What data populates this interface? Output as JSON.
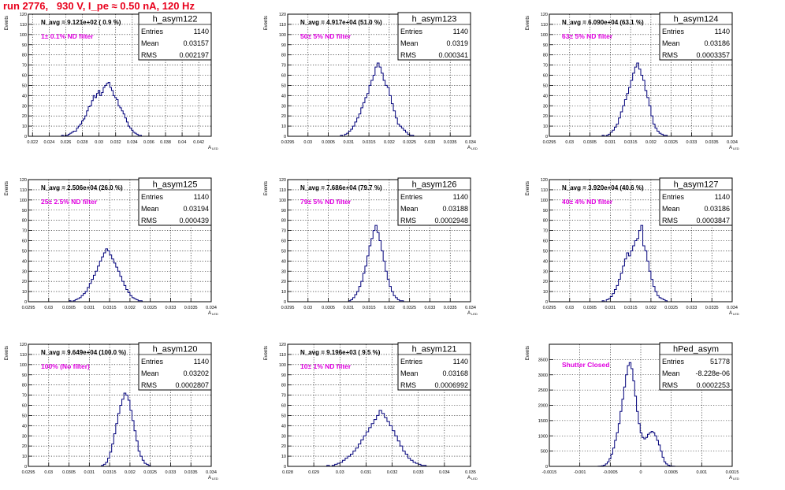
{
  "run_title": "run 2776,   930 V, I_pe ≈ 0.50 nA, 120 Hz",
  "colors": {
    "title": "#e8001c",
    "histogram": "#00007a",
    "annotation": "#e000e0",
    "grid": "#000000"
  },
  "stat_labels": {
    "entries": "Entries",
    "mean": "Mean",
    "rms": "RMS"
  },
  "chart_data": [
    {
      "type": "histogram",
      "name": "h_asym122",
      "navg": "N_avg = 9.121e+02 ( 0.9 %)",
      "filter": "1± 0.1% ND filter",
      "entries": "1140",
      "mean": "0.03157",
      "rms": "0.002197",
      "xlim": [
        0.0215,
        0.0435
      ],
      "ylim": [
        0,
        120
      ],
      "xticks": [
        0.022,
        0.024,
        0.026,
        0.028,
        0.03,
        0.032,
        0.034,
        0.036,
        0.038,
        0.04,
        0.042
      ],
      "xtick_labels": [
        "0.022",
        "0.024",
        "0.026",
        "0.028",
        "0.03",
        "0.032",
        "0.034",
        "0.036",
        "0.038",
        "0.04",
        "0.042"
      ],
      "yticks": [
        0,
        10,
        20,
        30,
        40,
        50,
        60,
        70,
        80,
        90,
        100,
        110,
        120
      ],
      "ytick_labels": [
        "0",
        "10",
        "20",
        "30",
        "40",
        "50",
        "60",
        "70",
        "80",
        "90",
        "100",
        "110",
        "120"
      ],
      "ylabel": "Events",
      "xlabel": "A_LED",
      "bins": {
        "lo": 0.0255,
        "width": 0.0002,
        "values": [
          1,
          0,
          1,
          1,
          2,
          3,
          4,
          5,
          5,
          8,
          10,
          12,
          15,
          17,
          20,
          25,
          29,
          30,
          35,
          40,
          38,
          42,
          45,
          40,
          43,
          48,
          50,
          52,
          53,
          48,
          45,
          40,
          38,
          36,
          30,
          28,
          25,
          22,
          18,
          14,
          10,
          8,
          6,
          4,
          3,
          2,
          1,
          1
        ]
      }
    },
    {
      "type": "histogram",
      "name": "h_asym123",
      "navg": "N_avg = 4.917e+04 (51.0 %)",
      "filter": "50± 5% ND filter",
      "entries": "1140",
      "mean": "0.0319",
      "rms": "0.000341",
      "xlim": [
        0.0295,
        0.034
      ],
      "ylim": [
        0,
        120
      ],
      "xticks": [
        0.0295,
        0.03,
        0.0305,
        0.031,
        0.0315,
        0.032,
        0.0325,
        0.033,
        0.0335,
        0.034
      ],
      "xtick_labels": [
        "0.0295",
        "0.03",
        "0.0305",
        "0.031",
        "0.0315",
        "0.032",
        "0.0325",
        "0.033",
        "0.0335",
        "0.034"
      ],
      "yticks": [
        0,
        10,
        20,
        30,
        40,
        50,
        60,
        70,
        80,
        90,
        100,
        110,
        120
      ],
      "ytick_labels": [
        "0",
        "10",
        "20",
        "30",
        "40",
        "50",
        "60",
        "70",
        "80",
        "90",
        "100",
        "110",
        "120"
      ],
      "ylabel": "Events",
      "xlabel": "A_LED",
      "bins": {
        "lo": 0.0308,
        "width": 5e-05,
        "values": [
          1,
          0,
          2,
          3,
          5,
          7,
          10,
          14,
          18,
          22,
          28,
          33,
          38,
          42,
          50,
          55,
          60,
          68,
          72,
          68,
          62,
          55,
          50,
          48,
          40,
          32,
          25,
          18,
          12,
          10,
          8,
          6,
          4,
          2,
          1,
          1
        ]
      }
    },
    {
      "type": "histogram",
      "name": "h_asym124",
      "navg": "N_avg = 6.090e+04 (63.1 %)",
      "filter": "63± 5% ND filter",
      "entries": "1140",
      "mean": "0.03186",
      "rms": "0.0003357",
      "xlim": [
        0.0295,
        0.034
      ],
      "ylim": [
        0,
        120
      ],
      "xticks": [
        0.0295,
        0.03,
        0.0305,
        0.031,
        0.0315,
        0.032,
        0.0325,
        0.033,
        0.0335,
        0.034
      ],
      "xtick_labels": [
        "0.0295",
        "0.03",
        "0.0305",
        "0.031",
        "0.0315",
        "0.032",
        "0.0325",
        "0.033",
        "0.0335",
        "0.034"
      ],
      "yticks": [
        0,
        10,
        20,
        30,
        40,
        50,
        60,
        70,
        80,
        90,
        100,
        110,
        120
      ],
      "ytick_labels": [
        "0",
        "10",
        "20",
        "30",
        "40",
        "50",
        "60",
        "70",
        "80",
        "90",
        "100",
        "110",
        "120"
      ],
      "ylabel": "Events",
      "xlabel": "A_LED",
      "bins": {
        "lo": 0.0308,
        "width": 5e-05,
        "values": [
          1,
          0,
          1,
          2,
          4,
          6,
          9,
          12,
          18,
          24,
          30,
          36,
          42,
          48,
          55,
          62,
          68,
          72,
          66,
          60,
          55,
          45,
          38,
          30,
          20,
          12,
          8,
          5,
          3,
          2,
          1,
          1
        ]
      }
    },
    {
      "type": "histogram",
      "name": "h_asym125",
      "navg": "N_avg = 2.506e+04 (26.0 %)",
      "filter": "25± 2.5% ND filter",
      "entries": "1140",
      "mean": "0.03194",
      "rms": "0.000439",
      "xlim": [
        0.0295,
        0.034
      ],
      "ylim": [
        0,
        120
      ],
      "xticks": [
        0.0295,
        0.03,
        0.0305,
        0.031,
        0.0315,
        0.032,
        0.0325,
        0.033,
        0.0335,
        0.034
      ],
      "xtick_labels": [
        "0.0295",
        "0.03",
        "0.0305",
        "0.031",
        "0.0315",
        "0.032",
        "0.0325",
        "0.033",
        "0.0335",
        "0.034"
      ],
      "yticks": [
        0,
        10,
        20,
        30,
        40,
        50,
        60,
        70,
        80,
        90,
        100,
        110,
        120
      ],
      "ytick_labels": [
        "0",
        "10",
        "20",
        "30",
        "40",
        "50",
        "60",
        "70",
        "80",
        "90",
        "100",
        "110",
        "120"
      ],
      "ylabel": "Events",
      "xlabel": "A_LED",
      "bins": {
        "lo": 0.0305,
        "width": 5e-05,
        "values": [
          1,
          0,
          1,
          2,
          3,
          4,
          6,
          8,
          10,
          14,
          18,
          22,
          26,
          30,
          35,
          40,
          44,
          48,
          52,
          50,
          46,
          42,
          38,
          34,
          30,
          25,
          20,
          16,
          12,
          9,
          6,
          4,
          3,
          2,
          1,
          1
        ]
      }
    },
    {
      "type": "histogram",
      "name": "h_asym126",
      "navg": "N_avg = 7.686e+04 (79.7 %)",
      "filter": "79± 5% ND filter",
      "entries": "1140",
      "mean": "0.03188",
      "rms": "0.0002948",
      "xlim": [
        0.0295,
        0.034
      ],
      "ylim": [
        0,
        120
      ],
      "xticks": [
        0.0295,
        0.03,
        0.0305,
        0.031,
        0.0315,
        0.032,
        0.0325,
        0.033,
        0.0335,
        0.034
      ],
      "xtick_labels": [
        "0.0295",
        "0.03",
        "0.0305",
        "0.031",
        "0.0315",
        "0.032",
        "0.0325",
        "0.033",
        "0.0335",
        "0.034"
      ],
      "yticks": [
        0,
        10,
        20,
        30,
        40,
        50,
        60,
        70,
        80,
        90,
        100,
        110,
        120
      ],
      "ytick_labels": [
        "0",
        "10",
        "20",
        "30",
        "40",
        "50",
        "60",
        "70",
        "80",
        "90",
        "100",
        "110",
        "120"
      ],
      "ylabel": "Events",
      "xlabel": "A_LED",
      "bins": {
        "lo": 0.031,
        "width": 5e-05,
        "values": [
          1,
          2,
          4,
          7,
          10,
          15,
          20,
          28,
          35,
          45,
          55,
          62,
          70,
          75,
          68,
          60,
          50,
          40,
          30,
          22,
          15,
          10,
          6,
          4,
          2,
          1,
          1
        ]
      }
    },
    {
      "type": "histogram",
      "name": "h_asym127",
      "navg": "N_avg = 3.920e+04 (40.6 %)",
      "filter": "40± 4% ND filter",
      "entries": "1140",
      "mean": "0.03186",
      "rms": "0.0003847",
      "xlim": [
        0.0295,
        0.034
      ],
      "ylim": [
        0,
        120
      ],
      "xticks": [
        0.0295,
        0.03,
        0.0305,
        0.031,
        0.0315,
        0.032,
        0.0325,
        0.033,
        0.0335,
        0.034
      ],
      "xtick_labels": [
        "0.0295",
        "0.03",
        "0.0305",
        "0.031",
        "0.0315",
        "0.032",
        "0.0325",
        "0.033",
        "0.0335",
        "0.034"
      ],
      "yticks": [
        0,
        10,
        20,
        30,
        40,
        50,
        60,
        70,
        80,
        90,
        100,
        110,
        120
      ],
      "ytick_labels": [
        "0",
        "10",
        "20",
        "30",
        "40",
        "50",
        "60",
        "70",
        "80",
        "90",
        "100",
        "110",
        "120"
      ],
      "ylabel": "Events",
      "xlabel": "A_LED",
      "bins": {
        "lo": 0.0308,
        "width": 5e-05,
        "values": [
          1,
          0,
          2,
          3,
          5,
          8,
          12,
          16,
          22,
          28,
          35,
          42,
          48,
          45,
          50,
          55,
          60,
          62,
          70,
          75,
          55,
          50,
          40,
          30,
          22,
          15,
          10,
          6,
          4,
          3,
          2,
          1
        ]
      }
    },
    {
      "type": "histogram",
      "name": "h_asym120",
      "navg": "N_avg = 9.649e+04 (100.0 %)",
      "filter": "100% (No filter)",
      "entries": "1140",
      "mean": "0.03202",
      "rms": "0.0002807",
      "xlim": [
        0.0295,
        0.034
      ],
      "ylim": [
        0,
        120
      ],
      "xticks": [
        0.0295,
        0.03,
        0.0305,
        0.031,
        0.0315,
        0.032,
        0.0325,
        0.033,
        0.0335,
        0.034
      ],
      "xtick_labels": [
        "0.0295",
        "0.03",
        "0.0305",
        "0.031",
        "0.0315",
        "0.032",
        "0.0325",
        "0.033",
        "0.0335",
        "0.034"
      ],
      "yticks": [
        0,
        10,
        20,
        30,
        40,
        50,
        60,
        70,
        80,
        90,
        100,
        110,
        120
      ],
      "ytick_labels": [
        "0",
        "10",
        "20",
        "30",
        "40",
        "50",
        "60",
        "70",
        "80",
        "90",
        "100",
        "110",
        "120"
      ],
      "ylabel": "Events",
      "xlabel": "A_LED",
      "bins": {
        "lo": 0.0313,
        "width": 5e-05,
        "values": [
          1,
          2,
          4,
          8,
          14,
          22,
          32,
          42,
          52,
          60,
          66,
          72,
          70,
          65,
          55,
          45,
          35,
          25,
          15,
          10,
          6,
          3,
          2,
          1
        ]
      }
    },
    {
      "type": "histogram",
      "name": "h_asym121",
      "navg": "N_avg = 9.196e+03 ( 9.5 %)",
      "filter": "10± 1% ND filter",
      "entries": "1140",
      "mean": "0.03168",
      "rms": "0.0006992",
      "xlim": [
        0.028,
        0.035
      ],
      "ylim": [
        0,
        120
      ],
      "xticks": [
        0.028,
        0.029,
        0.03,
        0.031,
        0.032,
        0.033,
        0.034,
        0.035
      ],
      "xtick_labels": [
        "0.028",
        "0.029",
        "0.03",
        "0.031",
        "0.032",
        "0.033",
        "0.034",
        "0.035"
      ],
      "yticks": [
        0,
        10,
        20,
        30,
        40,
        50,
        60,
        70,
        80,
        90,
        100,
        110,
        120
      ],
      "ytick_labels": [
        "0",
        "10",
        "20",
        "30",
        "40",
        "50",
        "60",
        "70",
        "80",
        "90",
        "100",
        "110",
        "120"
      ],
      "ylabel": "Events",
      "xlabel": "A_LED",
      "bins": {
        "lo": 0.0295,
        "width": 0.0001,
        "values": [
          1,
          0,
          1,
          2,
          3,
          4,
          6,
          8,
          10,
          12,
          15,
          18,
          22,
          26,
          30,
          34,
          38,
          42,
          46,
          50,
          55,
          52,
          48,
          44,
          40,
          35,
          30,
          25,
          20,
          15,
          12,
          8,
          6,
          4,
          3,
          2,
          1,
          1
        ]
      }
    },
    {
      "type": "histogram",
      "name": "hPed_asym",
      "navg": "",
      "filter": "Shutter Closed",
      "entries": "51778",
      "mean": "-8.228e-06",
      "rms": "0.0002253",
      "xlim": [
        -0.0015,
        0.0015
      ],
      "ylim": [
        0,
        4000
      ],
      "xticks": [
        -0.0015,
        -0.001,
        -0.0005,
        0,
        0.0005,
        0.001,
        0.0015
      ],
      "xtick_labels": [
        "-0.0015",
        "-0.001",
        "-0.0005",
        "0",
        "0.0005",
        "0.001",
        "0.0015"
      ],
      "yticks": [
        0,
        500,
        1000,
        1500,
        2000,
        2500,
        3000,
        3500
      ],
      "ytick_labels": [
        "0",
        "500",
        "1000",
        "1500",
        "2000",
        "2500",
        "3000",
        "3500"
      ],
      "ylabel": "Events",
      "xlabel": "A_LED",
      "bins": {
        "lo": -0.0007,
        "width": 3e-05,
        "values": [
          5,
          10,
          20,
          40,
          80,
          150,
          250,
          400,
          600,
          850,
          1100,
          1400,
          1800,
          2200,
          2600,
          3000,
          3300,
          3400,
          3200,
          2800,
          2300,
          1800,
          1400,
          1100,
          950,
          900,
          950,
          1050,
          1100,
          1150,
          1100,
          1000,
          850,
          700,
          500,
          300,
          150,
          80,
          40,
          20,
          10,
          5
        ]
      }
    }
  ]
}
